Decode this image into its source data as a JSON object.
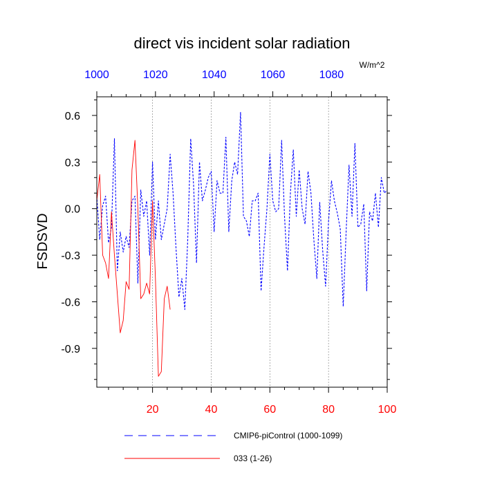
{
  "chart_data": {
    "type": "line",
    "title": "direct vis incident solar radiation",
    "ylabel": "FSDSVD",
    "units": "W/m^2",
    "xlim_bottom": [
      1,
      100
    ],
    "xlim_top": [
      1000,
      1099
    ],
    "ylim": [
      -1.15,
      0.72
    ],
    "bottom_ticks": [
      "20",
      "40",
      "60",
      "80",
      "100"
    ],
    "top_ticks": [
      "1000",
      "1020",
      "1040",
      "1060",
      "1080"
    ],
    "y_ticks": [
      "0.6",
      "0.3",
      "0.0",
      "-0.3",
      "-0.6",
      "-0.9"
    ],
    "bottom_tick_color": "#ff0000",
    "top_tick_color": "#0000ff",
    "grid": "vertical dashed at x = 20, 40, 60, 80",
    "series": [
      {
        "name": "CMIP6-piControl (1000-1099)",
        "axis": "top",
        "color": "#0000ff",
        "style": "dashed",
        "x": [
          1000,
          1001,
          1002,
          1003,
          1004,
          1005,
          1006,
          1007,
          1008,
          1009,
          1010,
          1011,
          1012,
          1013,
          1014,
          1015,
          1016,
          1017,
          1018,
          1019,
          1020,
          1021,
          1022,
          1023,
          1024,
          1025,
          1026,
          1027,
          1028,
          1029,
          1030,
          1031,
          1032,
          1033,
          1034,
          1035,
          1036,
          1037,
          1038,
          1039,
          1040,
          1041,
          1042,
          1043,
          1044,
          1045,
          1046,
          1047,
          1048,
          1049,
          1050,
          1051,
          1052,
          1053,
          1054,
          1055,
          1056,
          1057,
          1058,
          1059,
          1060,
          1061,
          1062,
          1063,
          1064,
          1065,
          1066,
          1067,
          1068,
          1069,
          1070,
          1071,
          1072,
          1073,
          1074,
          1075,
          1076,
          1077,
          1078,
          1079,
          1080,
          1081,
          1082,
          1083,
          1084,
          1085,
          1086,
          1087,
          1088,
          1089,
          1090,
          1091,
          1092,
          1093,
          1094,
          1095,
          1096,
          1097,
          1098,
          1099
        ],
        "values": [
          0.08,
          -0.2,
          0.02,
          0.08,
          -0.22,
          -0.12,
          0.45,
          -0.4,
          -0.15,
          -0.28,
          -0.18,
          -0.25,
          0.05,
          0.08,
          -0.48,
          0.12,
          -0.05,
          0.05,
          -0.3,
          0.3,
          -0.2,
          0.05,
          -0.2,
          -0.1,
          0.0,
          0.35,
          0.1,
          -0.25,
          -0.57,
          -0.45,
          -0.65,
          -0.2,
          0.45,
          0.15,
          -0.35,
          0.3,
          0.05,
          0.12,
          0.2,
          0.24,
          -0.15,
          0.18,
          0.1,
          0.1,
          0.46,
          -0.15,
          0.18,
          0.3,
          0.22,
          0.62,
          -0.05,
          -0.08,
          -0.18,
          0.05,
          0.05,
          0.1,
          -0.53,
          -0.25,
          0.0,
          0.35,
          0.05,
          -0.02,
          0.0,
          0.44,
          -0.05,
          -0.4,
          0.1,
          0.38,
          -0.05,
          0.25,
          0.0,
          -0.1,
          0.24,
          0.1,
          -0.2,
          -0.45,
          0.04,
          -0.27,
          -0.5,
          -0.08,
          0.18,
          0.05,
          -0.03,
          -0.13,
          -0.63,
          -0.15,
          0.28,
          -0.05,
          0.42,
          -0.12,
          -0.1,
          0.03,
          -0.53,
          -0.02,
          -0.08,
          0.1,
          -0.12,
          0.2,
          0.1,
          0.12
        ]
      },
      {
        "name": "033 (1-26)",
        "axis": "bottom",
        "color": "#ff0000",
        "style": "solid",
        "x": [
          1,
          2,
          3,
          4,
          5,
          6,
          7,
          8,
          9,
          10,
          11,
          12,
          13,
          14,
          15,
          16,
          17,
          18,
          19,
          20,
          21,
          22,
          23,
          24,
          25,
          26
        ],
        "values": [
          0.05,
          0.22,
          -0.3,
          -0.35,
          -0.45,
          -0.02,
          -0.3,
          -0.55,
          -0.8,
          -0.72,
          -0.47,
          -0.52,
          0.25,
          0.44,
          0.0,
          -0.58,
          -0.55,
          -0.48,
          -0.55,
          0.05,
          -0.45,
          -1.08,
          -1.05,
          -0.58,
          -0.5,
          -0.65
        ]
      }
    ],
    "legend": [
      {
        "label": "CMIP6-piControl (1000-1099)",
        "color": "#0000ff",
        "style": "dashed"
      },
      {
        "label": "033 (1-26)",
        "color": "#ff0000",
        "style": "solid"
      }
    ],
    "legend_position": "bottom"
  }
}
